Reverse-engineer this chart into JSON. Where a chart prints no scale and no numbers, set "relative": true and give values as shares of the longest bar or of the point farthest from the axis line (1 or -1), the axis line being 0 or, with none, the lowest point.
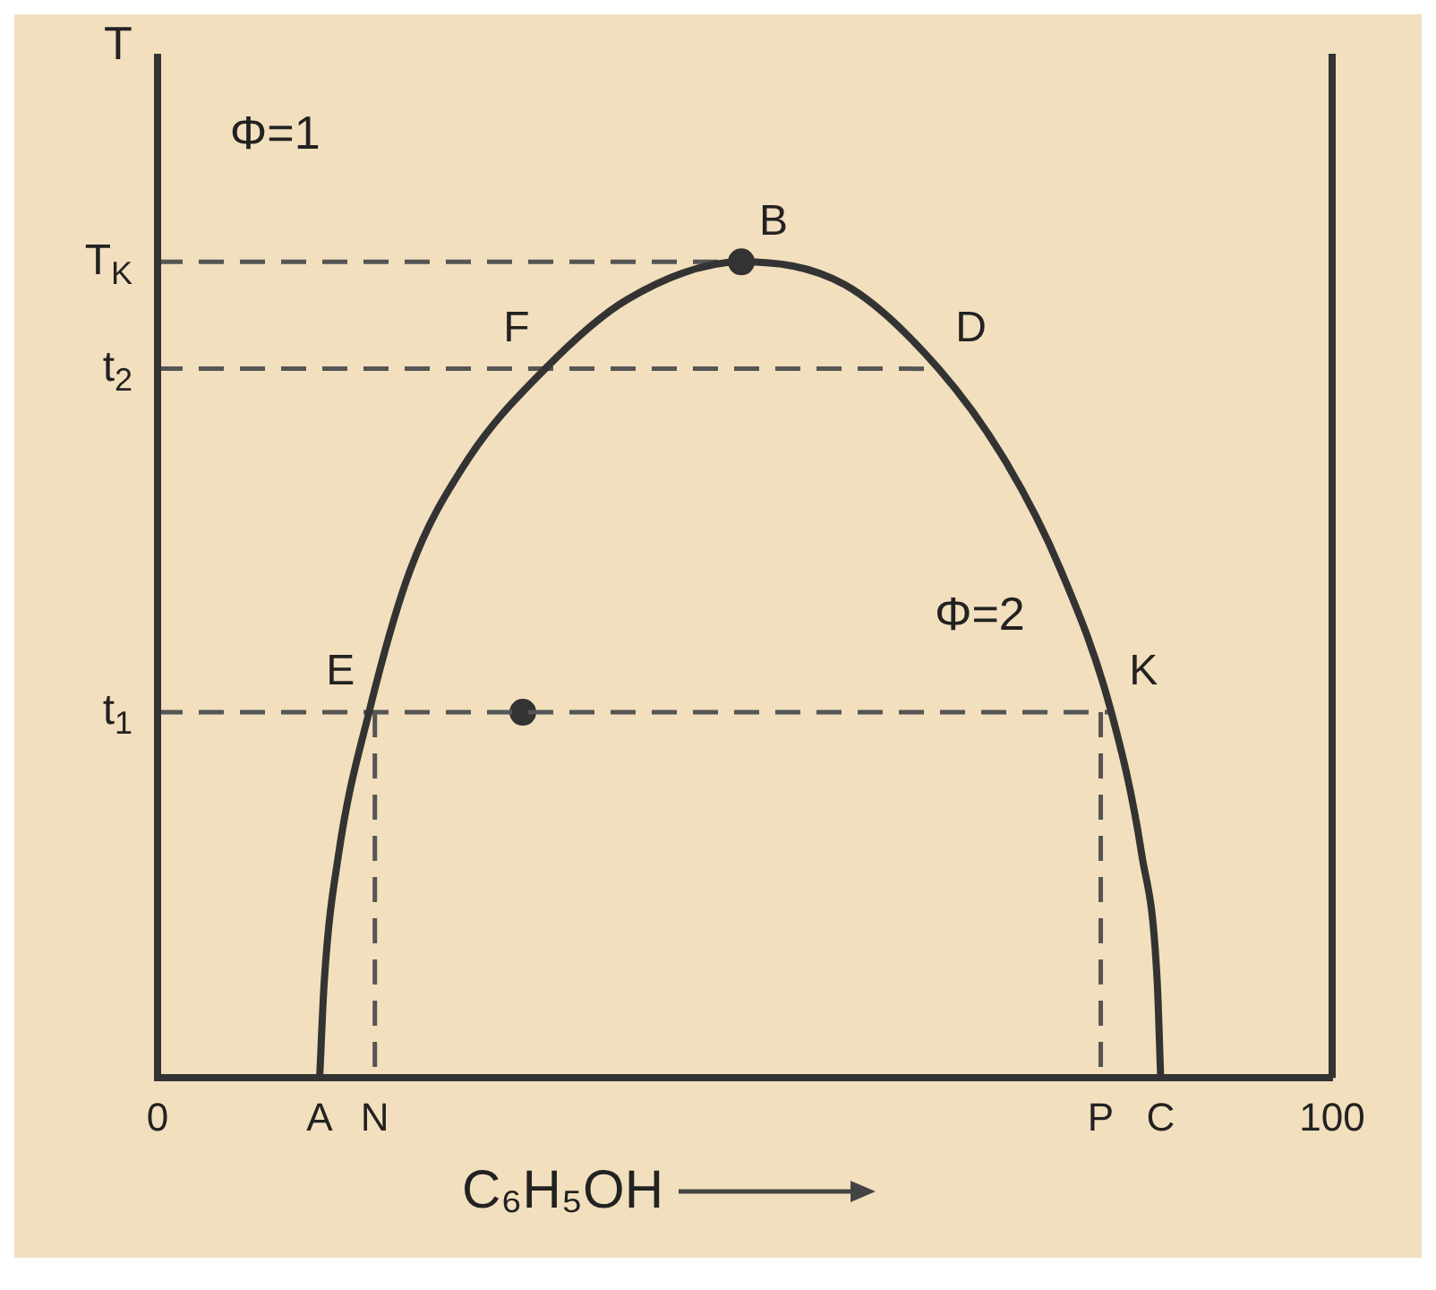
{
  "chart_data": {
    "type": "line",
    "xlabel": "C₆H₅OH",
    "ylabel": "T",
    "relative": true,
    "xlim": [
      0,
      100
    ],
    "xticks": [
      0,
      {
        "value": 13.8,
        "label": "A"
      },
      {
        "value": 18.5,
        "label": "N"
      },
      {
        "value": 80.3,
        "label": "P"
      },
      {
        "value": 85.4,
        "label": "C"
      },
      100
    ],
    "grid": false,
    "legend": false,
    "series": [
      {
        "type": "line",
        "color": "#333333",
        "line_style": "solid",
        "marker": "none",
        "x": [
          13.8,
          14.2,
          15.4,
          18,
          21.5,
          26.2,
          33,
          40,
          49.7,
          58.5,
          66.5,
          72.3,
          76.9,
          81.2,
          83.8,
          85.1,
          85.4
        ],
        "values": [
          0,
          0.12,
          0.273,
          0.448,
          0.622,
          0.753,
          0.869,
          0.954,
          1,
          0.972,
          0.869,
          0.753,
          0.622,
          0.448,
          0.273,
          0.12,
          0
        ]
      },
      {
        "type": "line",
        "color": "#555555",
        "line_style": "dashed",
        "marker": "none",
        "x": [
          0,
          49.7
        ],
        "values": [
          1,
          1
        ]
      },
      {
        "type": "line",
        "color": "#555555",
        "line_style": "dashed",
        "marker": "none",
        "x": [
          0,
          66.5
        ],
        "values": [
          0.869,
          0.869
        ]
      },
      {
        "type": "line",
        "color": "#555555",
        "line_style": "dashed",
        "marker": "none",
        "x": [
          0,
          81.2
        ],
        "values": [
          0.448,
          0.448
        ]
      },
      {
        "type": "line",
        "color": "#555555",
        "line_style": "dashed",
        "marker": "none",
        "x": [
          18.5,
          18.5
        ],
        "values": [
          0.448,
          0
        ]
      },
      {
        "type": "line",
        "color": "#555555",
        "line_style": "dashed",
        "marker": "none",
        "x": [
          80.3,
          80.3
        ],
        "values": [
          0.448,
          0
        ]
      },
      {
        "type": "scatter",
        "color": "#333333",
        "marker": "circle",
        "x": [
          49.7,
          31.1
        ],
        "values": [
          1,
          0.448
        ]
      }
    ],
    "annotations": [
      "Φ=1",
      "Φ=2",
      {
        "text": "B",
        "x": 49.7,
        "y": 1
      },
      {
        "text": "F",
        "x": 33,
        "y": 0.869
      },
      {
        "text": "D",
        "x": 66.5,
        "y": 0.869
      },
      {
        "text": "E",
        "x": 18,
        "y": 0.448
      },
      {
        "text": "K",
        "x": 81.2,
        "y": 0.448
      },
      {
        "text": "T$_{K}$",
        "x": 0,
        "y": 1
      },
      {
        "text": "t$_{2}$",
        "x": 0,
        "y": 0.869
      },
      {
        "text": "t$_{1}$",
        "x": 0,
        "y": 0.448
      }
    ]
  }
}
